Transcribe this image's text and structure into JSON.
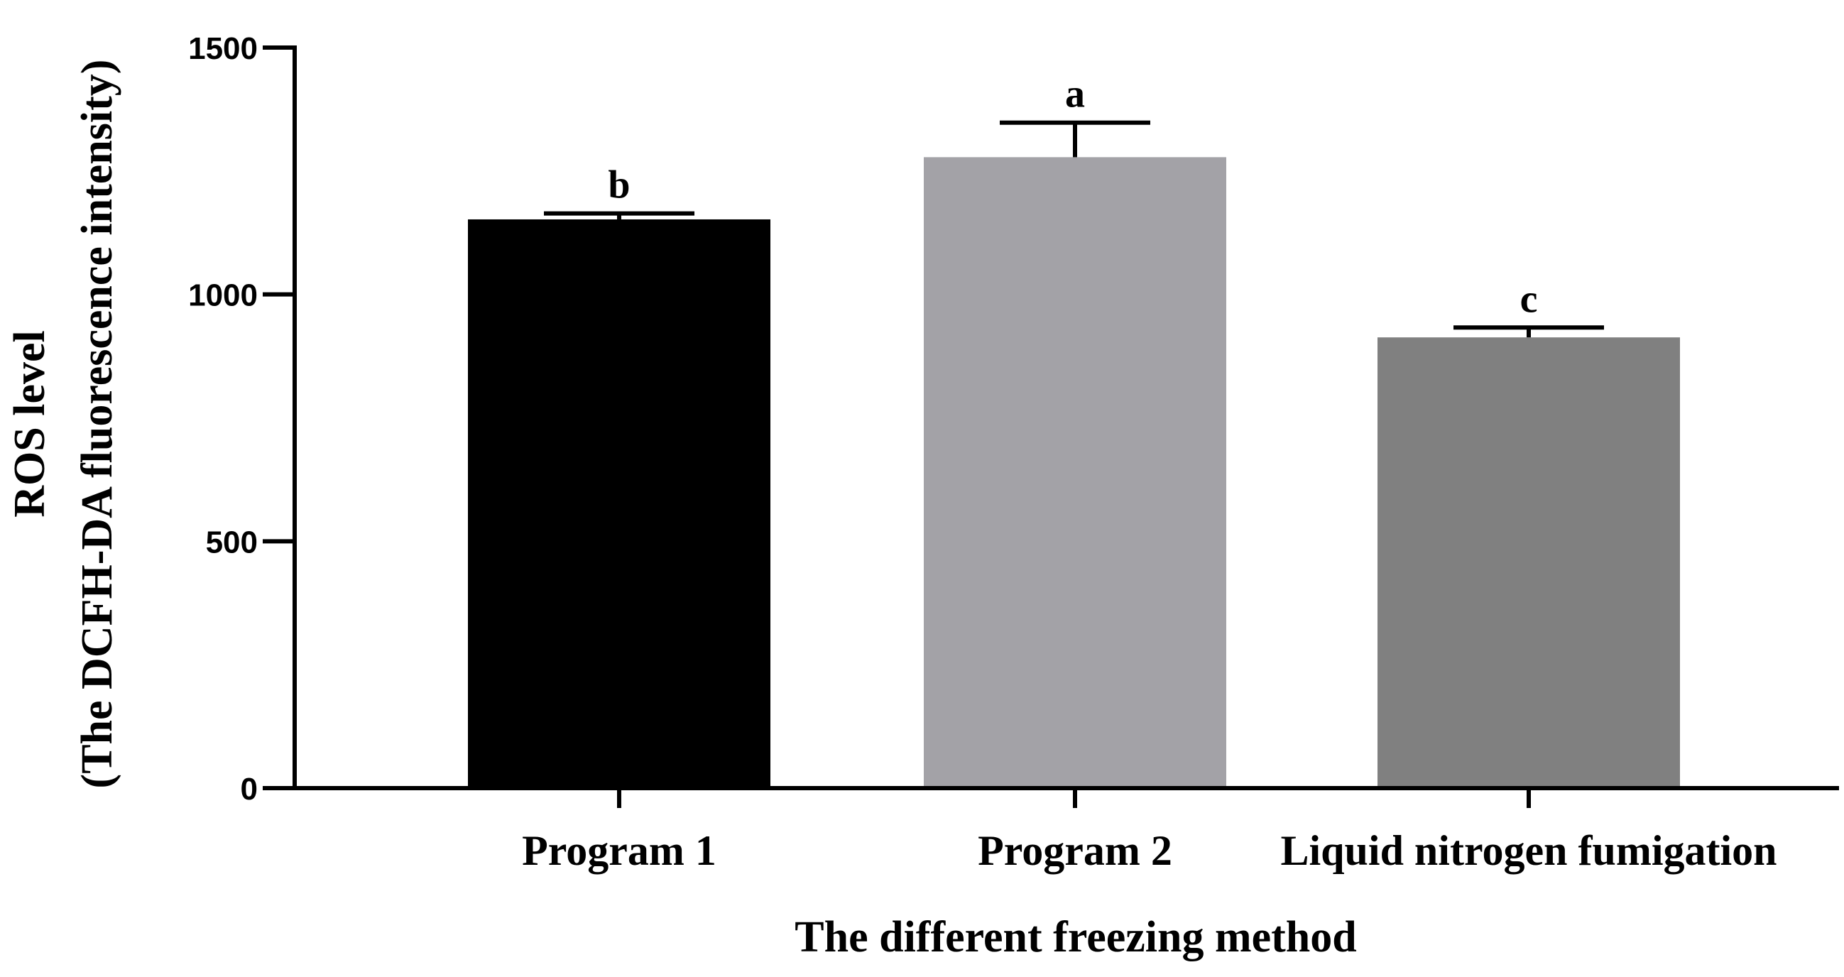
{
  "chart_data": {
    "type": "bar",
    "categories": [
      "Program 1",
      "Program 2",
      "Liquid nitrogen fumigation"
    ],
    "values": [
      1152,
      1278,
      913
    ],
    "errors": [
      12,
      70,
      20
    ],
    "significance": [
      "b",
      "a",
      "c"
    ],
    "colors": [
      "#000000",
      "#a3a2a7",
      "#808080"
    ],
    "xlabel": "The different freezing method",
    "ylabel_line1": "ROS level",
    "ylabel_line2": "(The  DCFH-DA fluorescence intensity)",
    "ylim": [
      0,
      1500
    ],
    "yticks": [
      0,
      500,
      1000,
      1500
    ],
    "grid": false
  }
}
